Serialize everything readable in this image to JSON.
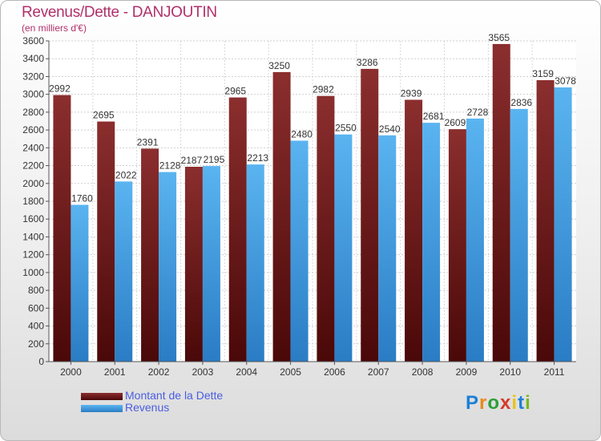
{
  "header": {
    "title": "Revenus/Dette - DANJOUTIN",
    "subtitle": "(en milliers d'€)"
  },
  "chart_data": {
    "type": "bar",
    "title": "Revenus/Dette - DANJOUTIN",
    "subtitle": "(en milliers d'€)",
    "categories": [
      "2000",
      "2001",
      "2002",
      "2003",
      "2004",
      "2005",
      "2006",
      "2007",
      "2008",
      "2009",
      "2010",
      "2011"
    ],
    "series": [
      {
        "name": "Montant de la Dette",
        "color": "#7a1c1c",
        "values": [
          2992,
          2695,
          2391,
          2187,
          2965,
          3250,
          2982,
          3286,
          2939,
          2609,
          3565,
          3159
        ]
      },
      {
        "name": "Revenus",
        "color": "#3a9be0",
        "values": [
          1760,
          2022,
          2128,
          2195,
          2213,
          2480,
          2550,
          2540,
          2681,
          2728,
          2836,
          3078
        ]
      }
    ],
    "ylim": [
      0,
      3600
    ],
    "yticks": [
      0,
      200,
      400,
      600,
      800,
      1000,
      1200,
      1400,
      1600,
      1800,
      2000,
      2200,
      2400,
      2600,
      2800,
      3000,
      3200,
      3400,
      3600
    ],
    "grid": true,
    "legend": "bottom-left"
  },
  "legend": {
    "items": [
      {
        "label": "Montant de la Dette",
        "color": "#7a1c1c"
      },
      {
        "label": "Revenus",
        "color": "#3a9be0"
      }
    ]
  },
  "logo": {
    "letters": [
      "P",
      "r",
      "o",
      "x",
      "i",
      "t",
      "i"
    ],
    "colors": [
      "#1e7fd6",
      "#e88a1a",
      "#2e9e3a",
      "#d63a2a",
      "#e8c41a",
      "#1e7fd6",
      "#7ab81a"
    ]
  }
}
